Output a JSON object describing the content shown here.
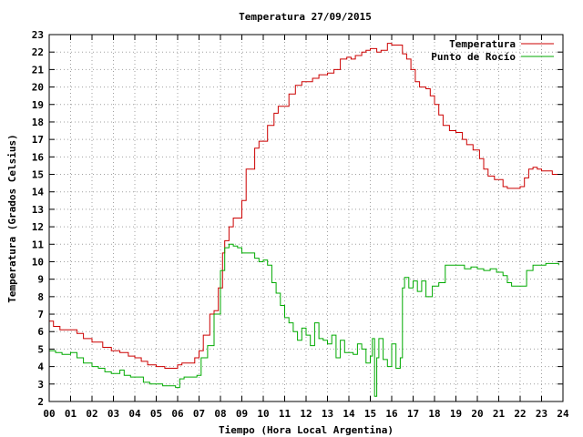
{
  "chart_data": {
    "type": "line",
    "title": "Temperatura 27/09/2015",
    "xlabel": "Tiempo (Hora Local Argentina)",
    "ylabel": "Temperatura (Grados Celsius)",
    "xlim": [
      0,
      24
    ],
    "ylim": [
      2,
      23
    ],
    "x_ticks": [
      "00",
      "01",
      "02",
      "03",
      "04",
      "05",
      "06",
      "07",
      "08",
      "09",
      "10",
      "11",
      "12",
      "13",
      "14",
      "15",
      "16",
      "17",
      "18",
      "19",
      "20",
      "21",
      "22",
      "23",
      "24"
    ],
    "y_ticks": [
      "2",
      "3",
      "4",
      "5",
      "6",
      "7",
      "8",
      "9",
      "10",
      "11",
      "12",
      "13",
      "14",
      "15",
      "16",
      "17",
      "18",
      "19",
      "20",
      "21",
      "22",
      "23"
    ],
    "grid": true,
    "legend_position": "top-right",
    "series": [
      {
        "name": "Temperatura",
        "color": "#cc0000",
        "x": [
          0,
          0.2,
          0.5,
          1.0,
          1.3,
          1.6,
          2.0,
          2.5,
          2.9,
          3.3,
          3.7,
          4.0,
          4.3,
          4.6,
          5.0,
          5.4,
          5.8,
          6.0,
          6.2,
          6.6,
          6.8,
          7.0,
          7.2,
          7.5,
          7.7,
          7.9,
          8.1,
          8.2,
          8.4,
          8.6,
          8.8,
          9.0,
          9.2,
          9.6,
          9.8,
          10.0,
          10.2,
          10.5,
          10.7,
          11.0,
          11.2,
          11.5,
          11.8,
          12.0,
          12.3,
          12.6,
          13.0,
          13.3,
          13.6,
          13.9,
          14.1,
          14.3,
          14.6,
          14.8,
          15.0,
          15.3,
          15.5,
          15.8,
          16.0,
          16.3,
          16.5,
          16.7,
          16.9,
          17.1,
          17.3,
          17.6,
          17.8,
          18.0,
          18.2,
          18.4,
          18.7,
          19.0,
          19.3,
          19.5,
          19.8,
          20.1,
          20.3,
          20.5,
          20.8,
          21.0,
          21.2,
          21.4,
          21.6,
          21.8,
          22.0,
          22.2,
          22.4,
          22.6,
          22.8,
          23.0,
          23.2,
          23.5,
          23.8
        ],
        "values": [
          6.6,
          6.3,
          6.1,
          6.1,
          5.9,
          5.6,
          5.4,
          5.1,
          4.9,
          4.8,
          4.6,
          4.5,
          4.3,
          4.1,
          4.0,
          3.9,
          3.9,
          4.1,
          4.2,
          4.2,
          4.5,
          4.9,
          5.8,
          7.0,
          7.2,
          8.5,
          10.5,
          11.2,
          12.0,
          12.5,
          12.5,
          13.5,
          15.3,
          16.5,
          16.9,
          16.9,
          17.8,
          18.5,
          18.9,
          18.9,
          19.6,
          20.1,
          20.3,
          20.3,
          20.5,
          20.7,
          20.8,
          21.0,
          21.6,
          21.7,
          21.6,
          21.8,
          22.0,
          22.1,
          22.2,
          22.0,
          22.1,
          22.5,
          22.4,
          22.4,
          21.9,
          21.6,
          21.0,
          20.3,
          20.0,
          19.9,
          19.5,
          19.0,
          18.4,
          17.8,
          17.5,
          17.4,
          17.0,
          16.7,
          16.4,
          15.9,
          15.3,
          14.9,
          14.7,
          14.7,
          14.3,
          14.2,
          14.2,
          14.2,
          14.3,
          14.8,
          15.3,
          15.4,
          15.3,
          15.2,
          15.2,
          15.0,
          15.0
        ]
      },
      {
        "name": "Punto de Rocío",
        "color": "#00aa00",
        "x": [
          0,
          0.3,
          0.6,
          1.0,
          1.3,
          1.6,
          2.0,
          2.3,
          2.6,
          2.9,
          3.3,
          3.5,
          3.8,
          4.1,
          4.4,
          4.7,
          5.0,
          5.3,
          5.6,
          5.9,
          6.1,
          6.3,
          6.6,
          6.9,
          7.1,
          7.4,
          7.7,
          8.0,
          8.2,
          8.4,
          8.6,
          8.8,
          9.0,
          9.3,
          9.6,
          9.8,
          10.0,
          10.2,
          10.4,
          10.6,
          10.8,
          11.0,
          11.2,
          11.4,
          11.6,
          11.8,
          12.0,
          12.2,
          12.4,
          12.6,
          12.8,
          13.0,
          13.2,
          13.4,
          13.6,
          13.8,
          14.0,
          14.2,
          14.4,
          14.6,
          14.8,
          15.0,
          15.1,
          15.2,
          15.3,
          15.4,
          15.6,
          15.8,
          16.0,
          16.2,
          16.4,
          16.5,
          16.6,
          16.8,
          17.0,
          17.2,
          17.4,
          17.6,
          17.9,
          18.2,
          18.5,
          18.8,
          19.1,
          19.4,
          19.7,
          20.0,
          20.3,
          20.6,
          20.9,
          21.2,
          21.4,
          21.6,
          21.8,
          22.0,
          22.3,
          22.6,
          22.9,
          23.2,
          23.5,
          23.8
        ],
        "values": [
          4.9,
          4.8,
          4.7,
          4.8,
          4.5,
          4.2,
          4.0,
          3.9,
          3.7,
          3.6,
          3.8,
          3.5,
          3.4,
          3.4,
          3.1,
          3.0,
          3.0,
          2.9,
          2.9,
          2.8,
          3.3,
          3.4,
          3.4,
          3.5,
          4.5,
          5.2,
          7.0,
          9.5,
          10.8,
          11.0,
          10.9,
          10.8,
          10.5,
          10.5,
          10.2,
          10.0,
          10.1,
          9.8,
          8.8,
          8.2,
          7.5,
          6.8,
          6.5,
          6.0,
          5.5,
          6.2,
          5.8,
          5.2,
          6.5,
          5.6,
          5.5,
          5.3,
          5.8,
          4.5,
          5.5,
          4.8,
          4.8,
          4.7,
          5.3,
          5.0,
          4.2,
          4.6,
          5.6,
          2.3,
          4.5,
          5.6,
          4.4,
          4.0,
          5.3,
          3.9,
          4.5,
          8.5,
          9.1,
          8.5,
          8.9,
          8.3,
          8.9,
          8.0,
          8.6,
          8.8,
          9.8,
          9.8,
          9.8,
          9.6,
          9.7,
          9.6,
          9.5,
          9.6,
          9.4,
          9.2,
          8.8,
          8.6,
          8.6,
          8.6,
          9.5,
          9.8,
          9.8,
          9.9,
          9.9,
          9.8
        ]
      }
    ]
  }
}
